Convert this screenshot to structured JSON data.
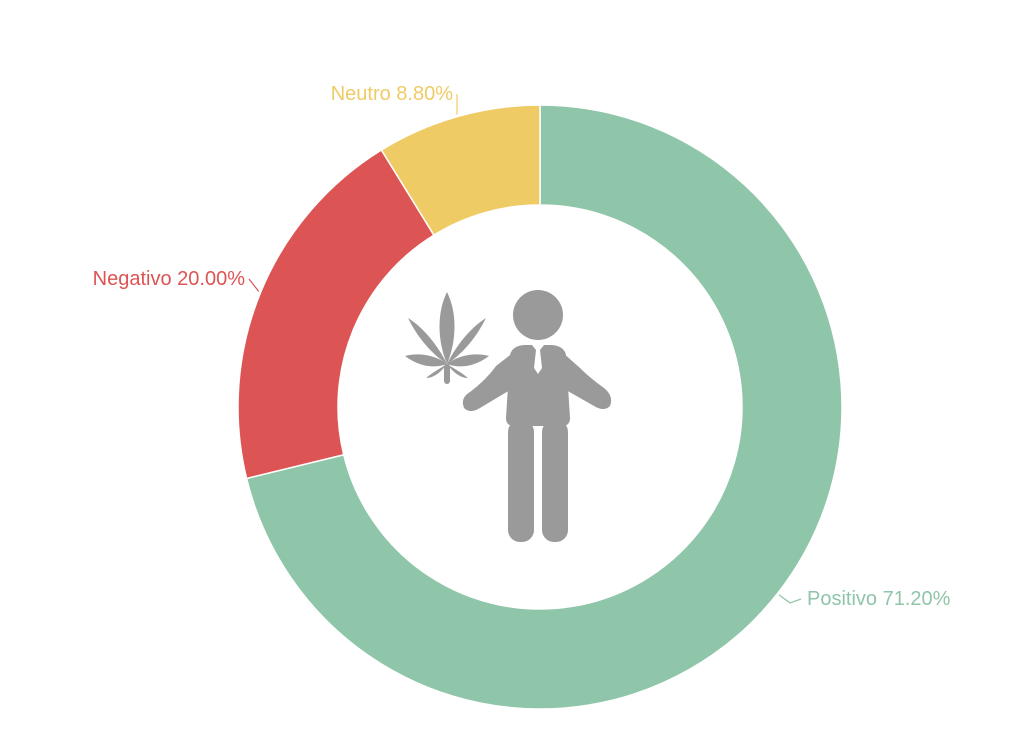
{
  "chart_data": {
    "type": "pie",
    "variant": "donut",
    "title": "",
    "categories": [
      "Positivo",
      "Negativo",
      "Neutro"
    ],
    "values": [
      71.2,
      20.0,
      8.8
    ],
    "slice_labels": [
      "Positivo 71.20%",
      "Negativo 20.00%",
      "Neutro 8.80%"
    ],
    "colors": [
      "#8fc5a8",
      "#dd5454",
      "#efcb66"
    ],
    "legend": "none",
    "center_icons": [
      "cannabis-leaf-icon",
      "businessman-icon"
    ],
    "icon_color": "#9a9a9a"
  }
}
